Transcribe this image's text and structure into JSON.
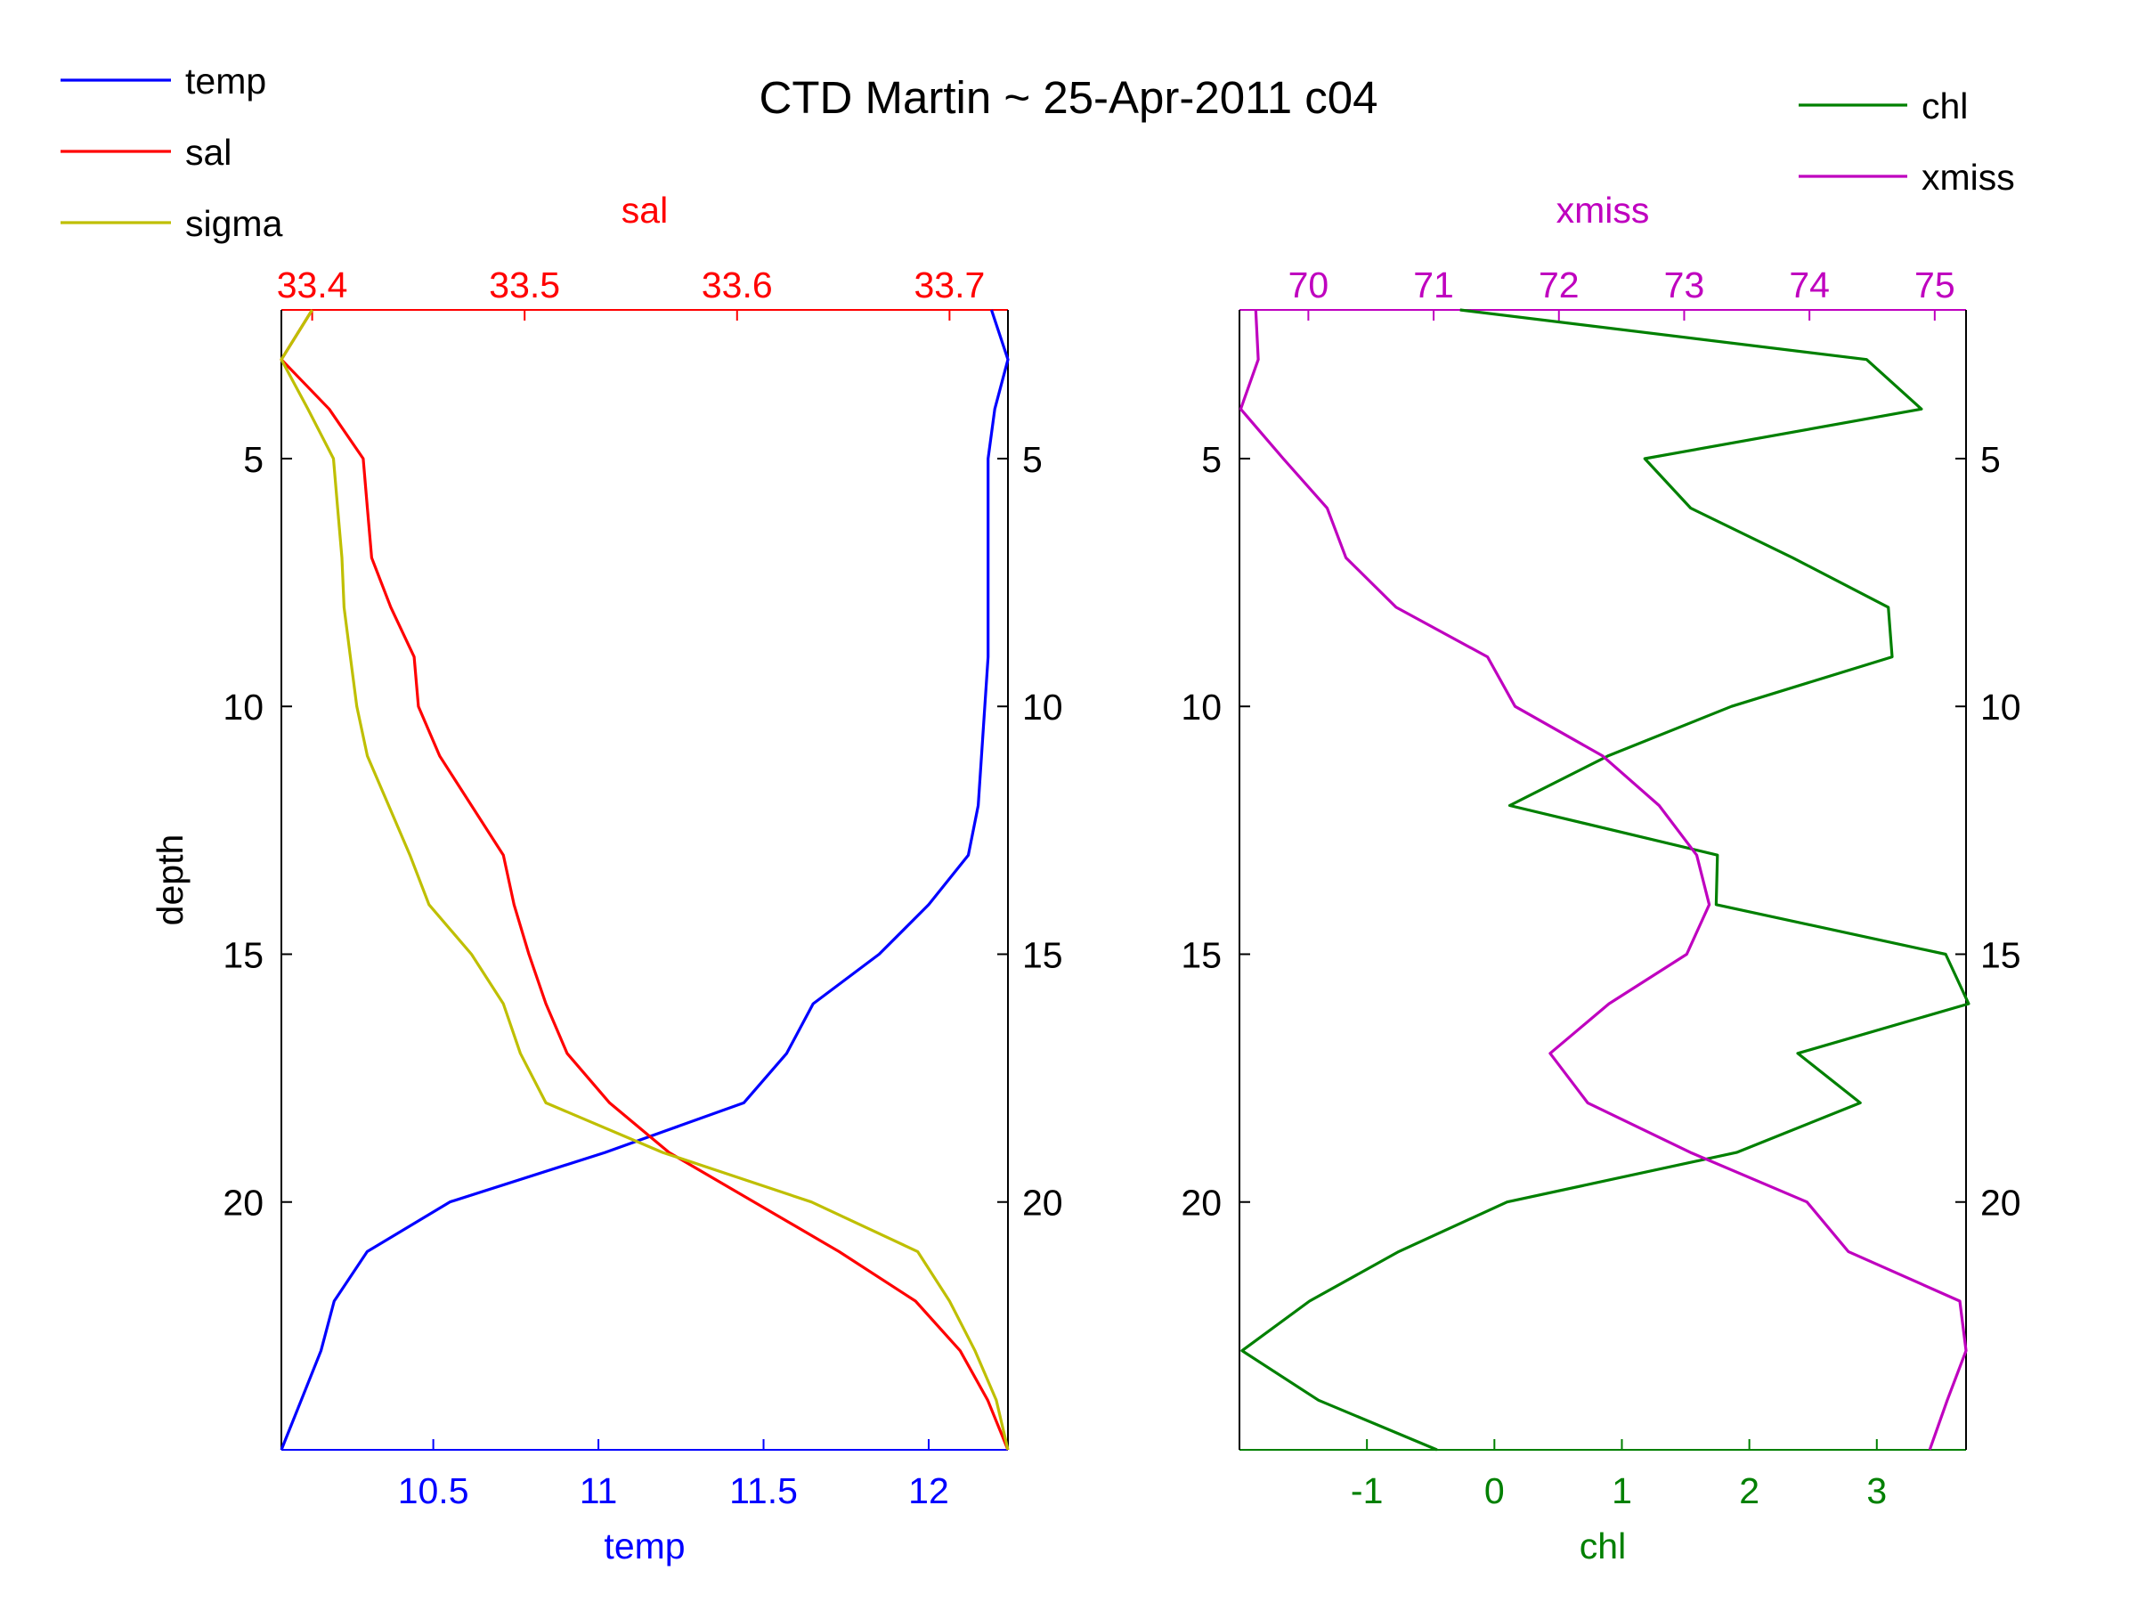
{
  "title": "CTD Martin ~ 25-Apr-2011 c04",
  "colors": {
    "temp": "#0000ff",
    "sal": "#ff0000",
    "sigma": "#bfbf00",
    "chl": "#008000",
    "xmiss": "#bf00bf",
    "axis": "#000000"
  },
  "legends": {
    "left": [
      {
        "label": "temp",
        "color_key": "temp"
      },
      {
        "label": "sal",
        "color_key": "sal"
      },
      {
        "label": "sigma",
        "color_key": "sigma"
      }
    ],
    "right": [
      {
        "label": "chl",
        "color_key": "chl"
      },
      {
        "label": "xmiss",
        "color_key": "xmiss"
      }
    ]
  },
  "chart_data": [
    {
      "type": "line",
      "name": "left-panel",
      "ylabel": "depth",
      "ylim": [
        2,
        25
      ],
      "y_reversed": true,
      "y_ticks": [
        5,
        10,
        15,
        20
      ],
      "bottom_axis": {
        "label": "temp",
        "color_key": "temp",
        "lim": [
          10.04,
          12.24
        ],
        "ticks": [
          10.5,
          11,
          11.5,
          12
        ],
        "tick_labels": [
          "10.5",
          "11",
          "11.5",
          "12"
        ]
      },
      "top_axis": {
        "label": "sal",
        "color_key": "sal",
        "lim": [
          33.3855,
          33.7275
        ],
        "ticks": [
          33.4,
          33.5,
          33.6,
          33.7
        ],
        "tick_labels": [
          "33.4",
          "33.5",
          "33.6",
          "33.7"
        ]
      },
      "series": [
        {
          "name": "temp",
          "axis": "bottom",
          "color_key": "temp",
          "points": [
            [
              12.19,
              2
            ],
            [
              12.24,
              3
            ],
            [
              12.2,
              4
            ],
            [
              12.18,
              5
            ],
            [
              12.18,
              6
            ],
            [
              12.18,
              7
            ],
            [
              12.18,
              8
            ],
            [
              12.18,
              9
            ],
            [
              12.17,
              10
            ],
            [
              12.16,
              11
            ],
            [
              12.15,
              12
            ],
            [
              12.12,
              13
            ],
            [
              12.0,
              14
            ],
            [
              11.85,
              15
            ],
            [
              11.65,
              16
            ],
            [
              11.57,
              17
            ],
            [
              11.44,
              18
            ],
            [
              11.02,
              19
            ],
            [
              10.55,
              20
            ],
            [
              10.3,
              21
            ],
            [
              10.2,
              22
            ],
            [
              10.16,
              23
            ],
            [
              10.1,
              24
            ],
            [
              10.04,
              25
            ]
          ]
        },
        {
          "name": "sal",
          "axis": "top",
          "color_key": "sal",
          "points": [
            [
              33.4,
              2
            ],
            [
              33.3855,
              3
            ],
            [
              33.408,
              4
            ],
            [
              33.424,
              5
            ],
            [
              33.426,
              6
            ],
            [
              33.428,
              7
            ],
            [
              33.437,
              8
            ],
            [
              33.448,
              9
            ],
            [
              33.45,
              10
            ],
            [
              33.46,
              11
            ],
            [
              33.475,
              12
            ],
            [
              33.49,
              13
            ],
            [
              33.495,
              14
            ],
            [
              33.502,
              15
            ],
            [
              33.51,
              16
            ],
            [
              33.52,
              17
            ],
            [
              33.54,
              18
            ],
            [
              33.568,
              19
            ],
            [
              33.608,
              20
            ],
            [
              33.648,
              21
            ],
            [
              33.684,
              22
            ],
            [
              33.705,
              23
            ],
            [
              33.718,
              24
            ],
            [
              33.7275,
              25
            ]
          ]
        },
        {
          "name": "sigma",
          "axis": "top",
          "color_key": "sigma",
          "points": [
            [
              33.4,
              2
            ],
            [
              33.3855,
              3
            ],
            [
              33.398,
              4
            ],
            [
              33.41,
              5
            ],
            [
              33.412,
              6
            ],
            [
              33.414,
              7
            ],
            [
              33.415,
              8
            ],
            [
              33.418,
              9
            ],
            [
              33.421,
              10
            ],
            [
              33.426,
              11
            ],
            [
              33.436,
              12
            ],
            [
              33.446,
              13
            ],
            [
              33.455,
              14
            ],
            [
              33.475,
              15
            ],
            [
              33.49,
              16
            ],
            [
              33.498,
              17
            ],
            [
              33.51,
              18
            ],
            [
              33.565,
              19
            ],
            [
              33.635,
              20
            ],
            [
              33.685,
              21
            ],
            [
              33.7,
              22
            ],
            [
              33.712,
              23
            ],
            [
              33.722,
              24
            ],
            [
              33.7275,
              25
            ]
          ]
        }
      ]
    },
    {
      "type": "line",
      "name": "right-panel",
      "ylabel": "",
      "ylim": [
        2,
        25
      ],
      "y_reversed": true,
      "y_ticks": [
        5,
        10,
        15,
        20
      ],
      "bottom_axis": {
        "label": "chl",
        "color_key": "chl",
        "lim": [
          -2.0,
          3.7
        ],
        "ticks": [
          -1,
          0,
          1,
          2,
          3
        ],
        "tick_labels": [
          "-1",
          "0",
          "1",
          "2",
          "3"
        ]
      },
      "top_axis": {
        "label": "xmiss",
        "color_key": "xmiss",
        "lim": [
          69.45,
          75.25
        ],
        "ticks": [
          70,
          71,
          72,
          73,
          74,
          75
        ],
        "tick_labels": [
          "70",
          "71",
          "72",
          "73",
          "74",
          "75"
        ]
      },
      "series": [
        {
          "name": "chl",
          "axis": "bottom",
          "color_key": "chl",
          "points": [
            [
              -0.27,
              2
            ],
            [
              2.92,
              3
            ],
            [
              3.35,
              4
            ],
            [
              1.18,
              5
            ],
            [
              1.54,
              6
            ],
            [
              2.34,
              7
            ],
            [
              3.09,
              8
            ],
            [
              3.12,
              9
            ],
            [
              1.86,
              10
            ],
            [
              0.89,
              11
            ],
            [
              0.12,
              12
            ],
            [
              1.75,
              13
            ],
            [
              1.74,
              14
            ],
            [
              3.54,
              15
            ],
            [
              3.72,
              16
            ],
            [
              2.38,
              17
            ],
            [
              2.87,
              18
            ],
            [
              1.9,
              19
            ],
            [
              0.1,
              20
            ],
            [
              -0.75,
              21
            ],
            [
              -1.45,
              22
            ],
            [
              -1.98,
              23
            ],
            [
              -1.38,
              24
            ],
            [
              -0.45,
              25
            ]
          ]
        },
        {
          "name": "xmiss",
          "axis": "top",
          "color_key": "xmiss",
          "points": [
            [
              69.58,
              2
            ],
            [
              69.6,
              3
            ],
            [
              69.46,
              4
            ],
            [
              69.8,
              5
            ],
            [
              70.15,
              6
            ],
            [
              70.3,
              7
            ],
            [
              70.7,
              8
            ],
            [
              71.43,
              9
            ],
            [
              71.65,
              10
            ],
            [
              72.35,
              11
            ],
            [
              72.8,
              12
            ],
            [
              73.1,
              13
            ],
            [
              73.2,
              14
            ],
            [
              73.02,
              15
            ],
            [
              72.4,
              16
            ],
            [
              71.93,
              17
            ],
            [
              72.23,
              18
            ],
            [
              73.05,
              19
            ],
            [
              73.98,
              20
            ],
            [
              74.31,
              21
            ],
            [
              75.2,
              22
            ],
            [
              75.25,
              23
            ],
            [
              75.1,
              24
            ],
            [
              74.96,
              25
            ]
          ]
        }
      ]
    }
  ]
}
